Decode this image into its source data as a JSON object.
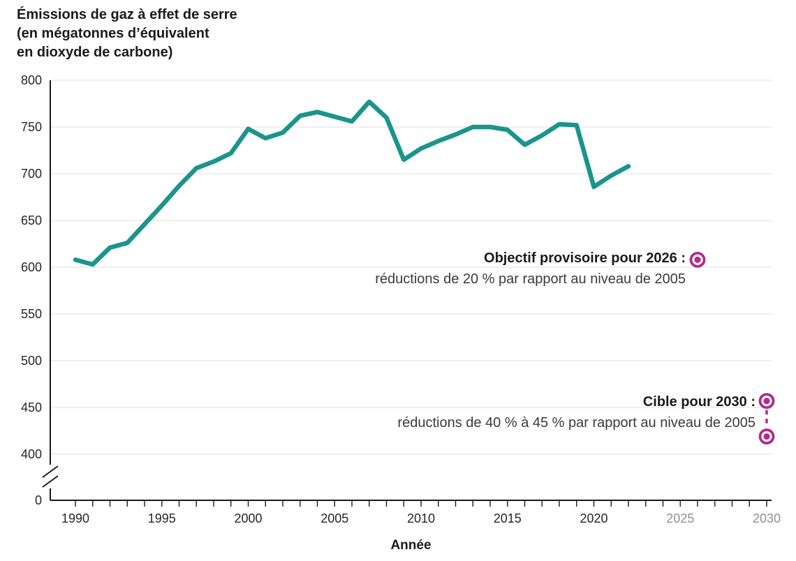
{
  "title": "Émissions de gaz à effet de serre\n(en mégatonnes d’équivalent\nen dioxyde de carbone)",
  "colors": {
    "line": "#1A948C",
    "target": "#AE2D8C",
    "grid": "#E5E5E5",
    "axis": "#1A1A1A",
    "tick_label": "#262626",
    "future_tick_label": "#8F8F8F",
    "annotation_text": "#3A3A3A"
  },
  "chart_data": {
    "type": "line",
    "title": "Émissions de gaz à effet de serre (en mégatonnes d’équivalent en dioxyde de carbone)",
    "xlabel": "Année",
    "ylabel": "",
    "grid": "horizontal",
    "legend": "none",
    "xlim": [
      1990,
      2030
    ],
    "ylim": [
      400,
      800
    ],
    "y_axis_break_to_zero": true,
    "y_ticks": [
      800,
      750,
      700,
      650,
      600,
      550,
      500,
      450,
      400,
      0
    ],
    "x_ticks": [
      1990,
      1995,
      2000,
      2005,
      2010,
      2015,
      2020,
      2025,
      2030
    ],
    "future_x_ticks": [
      2025,
      2030
    ],
    "x_minor_tick_every_year": true,
    "x": [
      1990,
      1991,
      1992,
      1993,
      1994,
      1995,
      1996,
      1997,
      1998,
      1999,
      2000,
      2001,
      2002,
      2003,
      2004,
      2005,
      2006,
      2007,
      2008,
      2009,
      2010,
      2011,
      2012,
      2013,
      2014,
      2015,
      2016,
      2017,
      2018,
      2019,
      2020,
      2021,
      2022
    ],
    "series": [
      {
        "name": "émissions",
        "color": "#1A948C",
        "values": [
          608,
          603,
          621,
          626,
          646,
          666,
          687,
          706,
          713,
          722,
          748,
          738,
          744,
          762,
          766,
          761,
          756,
          777,
          760,
          715,
          727,
          735,
          742,
          750,
          750,
          747,
          731,
          741,
          753,
          752,
          686,
          698,
          708
        ]
      }
    ],
    "annotations": [
      {
        "label": "Objectif provisoire pour 2026 :",
        "description": "réductions de 20 % par rapport au niveau de 2005",
        "markers": [
          {
            "year": 2026,
            "value": 608
          }
        ],
        "connector": "none"
      },
      {
        "label": "Cible pour 2030 :",
        "description": "réductions de 40 % à 45 % par rapport au niveau de 2005",
        "markers": [
          {
            "year": 2030,
            "value": 457
          },
          {
            "year": 2030,
            "value": 419
          }
        ],
        "connector": "dashed"
      }
    ]
  }
}
